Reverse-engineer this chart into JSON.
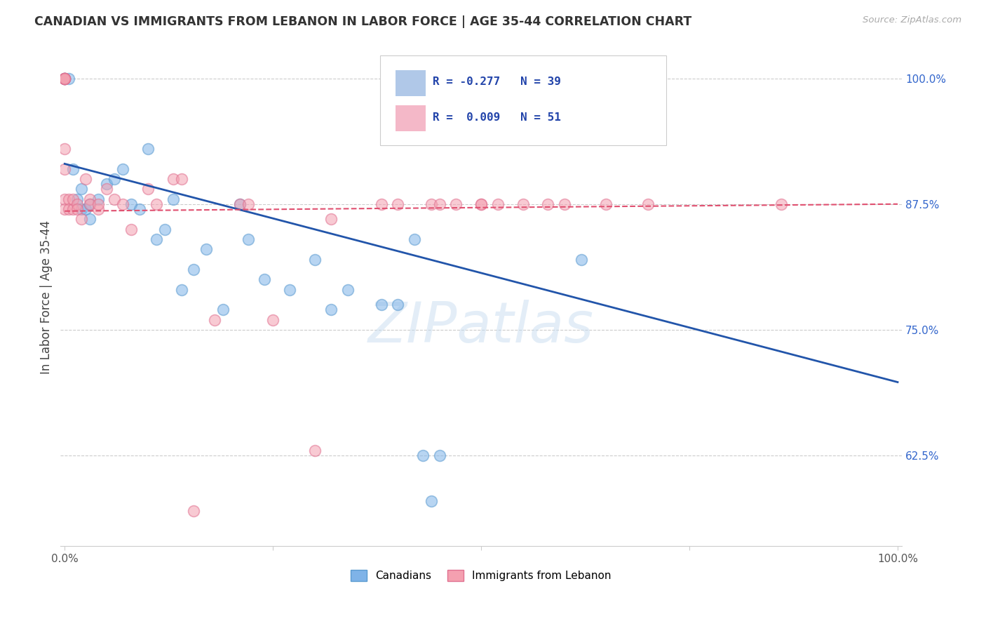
{
  "title": "CANADIAN VS IMMIGRANTS FROM LEBANON IN LABOR FORCE | AGE 35-44 CORRELATION CHART",
  "source": "Source: ZipAtlas.com",
  "ylabel": "In Labor Force | Age 35-44",
  "xlim": [
    -0.005,
    1.005
  ],
  "ylim": [
    0.535,
    1.03
  ],
  "yticks": [
    0.625,
    0.75,
    0.875,
    1.0
  ],
  "ytick_labels": [
    "62.5%",
    "75.0%",
    "87.5%",
    "100.0%"
  ],
  "xticks": [
    0.0,
    0.25,
    0.5,
    0.75,
    1.0
  ],
  "xtick_labels": [
    "0.0%",
    "",
    "",
    "",
    "100.0%"
  ],
  "canadians_color": "#7fb3e8",
  "lebanon_color": "#f4a0b0",
  "canadians_edge_color": "#5a9ad0",
  "lebanon_edge_color": "#e07090",
  "canadians_line_color": "#2255aa",
  "lebanon_line_color": "#e05070",
  "watermark": "ZIPatlas",
  "legend_blue_fill": "#b0c8e8",
  "legend_pink_fill": "#f4b8c8",
  "canadians_x": [
    0.0,
    0.0,
    0.0,
    0.005,
    0.01,
    0.015,
    0.02,
    0.02,
    0.025,
    0.03,
    0.03,
    0.04,
    0.05,
    0.06,
    0.07,
    0.08,
    0.09,
    0.1,
    0.11,
    0.12,
    0.13,
    0.14,
    0.155,
    0.17,
    0.19,
    0.21,
    0.22,
    0.24,
    0.27,
    0.3,
    0.32,
    0.34,
    0.38,
    0.4,
    0.42,
    0.43,
    0.44,
    0.45,
    0.62
  ],
  "canadians_y": [
    1.0,
    1.0,
    1.0,
    1.0,
    0.91,
    0.88,
    0.87,
    0.89,
    0.87,
    0.875,
    0.86,
    0.88,
    0.895,
    0.9,
    0.91,
    0.875,
    0.87,
    0.93,
    0.84,
    0.85,
    0.88,
    0.79,
    0.81,
    0.83,
    0.77,
    0.875,
    0.84,
    0.8,
    0.79,
    0.82,
    0.77,
    0.79,
    0.775,
    0.775,
    0.84,
    0.625,
    0.58,
    0.625,
    0.82
  ],
  "lebanon_x": [
    0.0,
    0.0,
    0.0,
    0.0,
    0.0,
    0.0,
    0.0,
    0.0,
    0.0,
    0.0,
    0.005,
    0.005,
    0.01,
    0.01,
    0.015,
    0.015,
    0.02,
    0.025,
    0.03,
    0.03,
    0.04,
    0.04,
    0.05,
    0.06,
    0.07,
    0.08,
    0.1,
    0.11,
    0.13,
    0.14,
    0.155,
    0.18,
    0.21,
    0.22,
    0.25,
    0.3,
    0.32,
    0.38,
    0.4,
    0.44,
    0.45,
    0.47,
    0.5,
    0.5,
    0.52,
    0.55,
    0.58,
    0.6,
    0.65,
    0.7,
    0.86
  ],
  "lebanon_y": [
    1.0,
    1.0,
    1.0,
    1.0,
    1.0,
    1.0,
    0.93,
    0.91,
    0.88,
    0.87,
    0.88,
    0.87,
    0.87,
    0.88,
    0.875,
    0.87,
    0.86,
    0.9,
    0.88,
    0.875,
    0.87,
    0.875,
    0.89,
    0.88,
    0.875,
    0.85,
    0.89,
    0.875,
    0.9,
    0.9,
    0.57,
    0.76,
    0.875,
    0.875,
    0.76,
    0.63,
    0.86,
    0.875,
    0.875,
    0.875,
    0.875,
    0.875,
    0.875,
    0.875,
    0.875,
    0.875,
    0.875,
    0.875,
    0.875,
    0.875,
    0.875
  ],
  "blue_line_x0": 0.0,
  "blue_line_y0": 0.915,
  "blue_line_x1": 1.0,
  "blue_line_y1": 0.698,
  "pink_line_x0": 0.0,
  "pink_line_y0": 0.868,
  "pink_line_x1": 1.0,
  "pink_line_y1": 0.875
}
